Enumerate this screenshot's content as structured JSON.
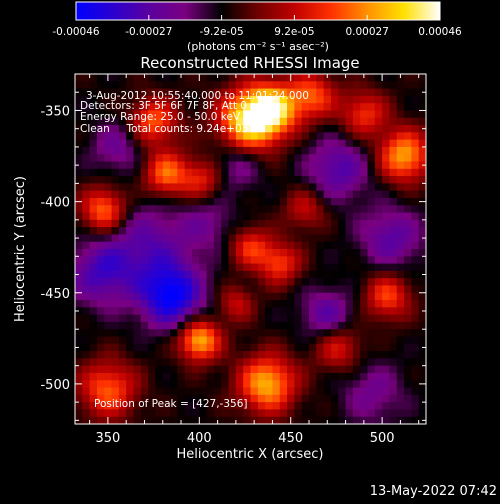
{
  "colorbar": {
    "tick_labels": [
      "-0.00046",
      "-0.00027",
      "-9.2e-05",
      "9.2e-05",
      "0.00027",
      "0.00046"
    ],
    "unit_label": "(photons cm⁻² s⁻¹ asec⁻²)",
    "colors": [
      "#0000ff",
      "#2a00d0",
      "#5a00a0",
      "#7a0080",
      "#000000",
      "#700000",
      "#c00000",
      "#ff3000",
      "#ff9000",
      "#ffe000",
      "#ffffff"
    ]
  },
  "chart_data": {
    "type": "heatmap",
    "title": "Reconstructed RHESSI Image",
    "xlabel": "Heliocentric X (arcsec)",
    "ylabel": "Heliocentric Y (arcsec)",
    "xlim": [
      332,
      524
    ],
    "ylim": [
      -522,
      -330
    ],
    "x_ticks": [
      350,
      400,
      450,
      500
    ],
    "x_tick_labels": [
      "350",
      "400",
      "450",
      "500"
    ],
    "y_ticks": [
      -350,
      -400,
      -450,
      -500
    ],
    "y_tick_labels": [
      "-350",
      "-400",
      "-450",
      "-500"
    ],
    "value_range": [
      -0.00046,
      0.00046
    ],
    "grid": false,
    "annotations": [
      "3-Aug-2012 10:55:40.000 to 11:01:24.000",
      "Detectors: 3F 5F 6F 7F 8F, Att 0",
      "Energy Range: 25.0 - 50.0 keV",
      "Clean     Total counts: 9.24e+03"
    ],
    "peak_label": "Position of Peak = [427,-356]",
    "peak": [
      427,
      -356
    ],
    "sources": [
      {
        "x": 427,
        "y": -356,
        "amp": 0.00046,
        "sigma": 12
      },
      {
        "x": 440,
        "y": -349,
        "amp": 0.0004,
        "sigma": 10
      },
      {
        "x": 462,
        "y": -342,
        "amp": 0.00028,
        "sigma": 9
      },
      {
        "x": 375,
        "y": -356,
        "amp": 0.0003,
        "sigma": 9
      },
      {
        "x": 382,
        "y": -385,
        "amp": 0.00032,
        "sigma": 9
      },
      {
        "x": 402,
        "y": -388,
        "amp": 0.00022,
        "sigma": 8
      },
      {
        "x": 512,
        "y": -375,
        "amp": 0.00038,
        "sigma": 10
      },
      {
        "x": 490,
        "y": -352,
        "amp": 0.00025,
        "sigma": 9
      },
      {
        "x": 348,
        "y": -405,
        "amp": 0.00035,
        "sigma": 9
      },
      {
        "x": 428,
        "y": -425,
        "amp": 0.00024,
        "sigma": 8
      },
      {
        "x": 444,
        "y": -434,
        "amp": 0.00026,
        "sigma": 8
      },
      {
        "x": 458,
        "y": -404,
        "amp": 0.00018,
        "sigma": 8
      },
      {
        "x": 503,
        "y": -452,
        "amp": 0.00027,
        "sigma": 9
      },
      {
        "x": 400,
        "y": -476,
        "amp": 0.00042,
        "sigma": 8
      },
      {
        "x": 437,
        "y": -500,
        "amp": 0.0004,
        "sigma": 11
      },
      {
        "x": 350,
        "y": -503,
        "amp": 0.0003,
        "sigma": 11
      },
      {
        "x": 476,
        "y": -480,
        "amp": 0.00022,
        "sigma": 9
      },
      {
        "x": 420,
        "y": -456,
        "amp": 0.00018,
        "sigma": 7
      },
      {
        "x": 370,
        "y": -425,
        "amp": -0.0002,
        "sigma": 18
      },
      {
        "x": 385,
        "y": -452,
        "amp": -0.00035,
        "sigma": 12
      },
      {
        "x": 345,
        "y": -440,
        "amp": -0.0002,
        "sigma": 12
      },
      {
        "x": 476,
        "y": -382,
        "amp": -0.00022,
        "sigma": 12
      },
      {
        "x": 505,
        "y": -420,
        "amp": -0.0002,
        "sigma": 12
      },
      {
        "x": 470,
        "y": -462,
        "amp": -0.0002,
        "sigma": 10
      },
      {
        "x": 420,
        "y": -380,
        "amp": -0.00015,
        "sigma": 10
      },
      {
        "x": 355,
        "y": -370,
        "amp": -0.00015,
        "sigma": 10
      },
      {
        "x": 405,
        "y": -412,
        "amp": -0.00012,
        "sigma": 10
      },
      {
        "x": 495,
        "y": -505,
        "amp": -0.00014,
        "sigma": 12
      }
    ]
  },
  "footer": {
    "timestamp": "13-May-2022 07:42"
  }
}
